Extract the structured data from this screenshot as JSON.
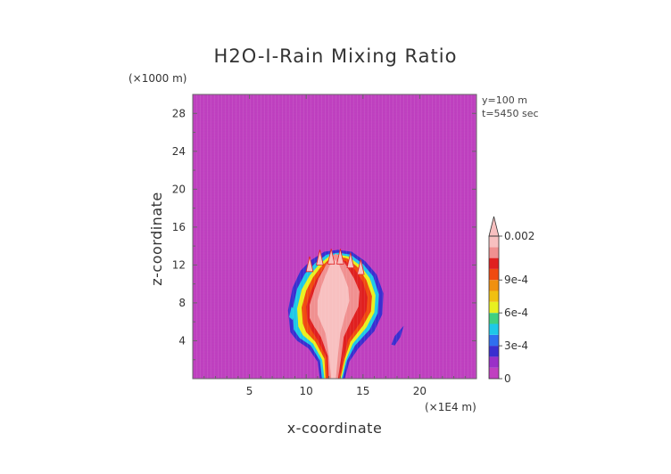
{
  "chart_data": {
    "type": "heatmap",
    "title": "H2O-I-Rain Mixing Ratio",
    "xlabel": "x-coordinate",
    "ylabel": "z-coordinate",
    "x_unit": "(×1E4 m)",
    "y_unit": "(×1000 m)",
    "xlim": [
      0,
      25
    ],
    "ylim": [
      0,
      30
    ],
    "x_ticks": [
      5,
      10,
      15,
      20
    ],
    "y_ticks": [
      4,
      8,
      12,
      16,
      20,
      24,
      28
    ],
    "info": [
      "y=100 m",
      "t=5450 sec"
    ],
    "field": {
      "background_value": 0,
      "feature": "convective rain core centered near x≈12.5, extending from surface to z≈13.5, max ≈0.002"
    },
    "colorbar": {
      "levels": [
        0,
        0.0001,
        0.0002,
        0.0003,
        0.0004,
        0.0005,
        0.0006,
        0.0007,
        0.0008,
        0.0009,
        0.001,
        0.0015,
        0.002
      ],
      "colors": [
        "#c040c0",
        "#9a30c8",
        "#3a2fd0",
        "#2f6ff0",
        "#1ec8e8",
        "#40d080",
        "#e8f020",
        "#f0c010",
        "#f09010",
        "#f04a10",
        "#e02020",
        "#f09090",
        "#f8c0c0"
      ],
      "tick_labels": [
        "0",
        "3e-4",
        "6e-4",
        "9e-4",
        "0.002"
      ],
      "tick_values": [
        0,
        0.0003,
        0.0006,
        0.0009,
        0.002
      ]
    }
  }
}
